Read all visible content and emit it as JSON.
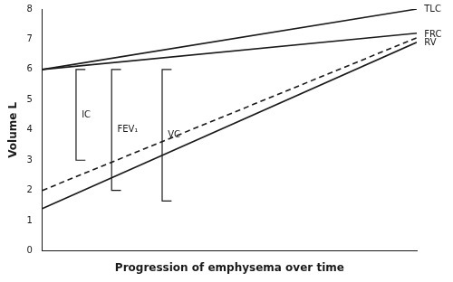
{
  "chart_data": {
    "type": "line",
    "xlabel": "Progression of emphysema over time",
    "ylabel": "Volume L",
    "xlim": [
      0,
      1
    ],
    "ylim": [
      0,
      8
    ],
    "yticks": [
      0,
      1,
      2,
      3,
      4,
      5,
      6,
      7,
      8
    ],
    "grid": false,
    "tick_labels": "y",
    "color": "#1a1a1a",
    "series": [
      {
        "x": [
          0,
          1
        ],
        "values": [
          6.0,
          8.0
        ],
        "line_style": "solid"
      },
      {
        "x": [
          0,
          1
        ],
        "values": [
          6.0,
          7.2
        ],
        "line_style": "solid"
      },
      {
        "x": [
          0,
          1
        ],
        "values": [
          2.0,
          7.05
        ],
        "line_style": "dashed"
      },
      {
        "x": [
          0,
          1
        ],
        "values": [
          1.4,
          6.9
        ],
        "line_style": "solid"
      }
    ],
    "annotations": [
      {
        "text": "TLC",
        "x": 1.02,
        "y": 8.0
      },
      {
        "text": "FRC",
        "x": 1.02,
        "y": 7.15
      },
      {
        "text": "RV",
        "x": 1.02,
        "y": 6.88
      }
    ],
    "brackets": [
      {
        "label": "IC",
        "x": 0.09,
        "y_top": 6.0,
        "y_bottom": 3.0
      },
      {
        "label": "FEV₁",
        "x": 0.185,
        "y_top": 6.0,
        "y_bottom": 2.0
      },
      {
        "label": "VC",
        "x": 0.32,
        "y_top": 6.0,
        "y_bottom": 1.65
      }
    ]
  }
}
